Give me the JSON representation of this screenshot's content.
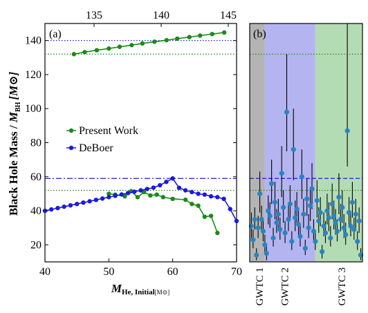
{
  "chart_data": [
    {
      "panel_label": "(a)",
      "type": "line",
      "xlabel_main": "M",
      "xlabel_sub": "He, Initial",
      "xlabel_unit": "[M⊙]",
      "ylabel": "Black Hole Mass / M_BH [M⊙]",
      "ylabel_main": "Black Hole Mass / ",
      "ylabel_M": "M",
      "ylabel_sub": "BH",
      "ylabel_unit": "[M⊙]",
      "xlim": [
        40,
        70
      ],
      "ylim": [
        10,
        150
      ],
      "x_ticks": [
        "40",
        "50",
        "60",
        "70"
      ],
      "y_ticks": [
        "20",
        "40",
        "60",
        "80",
        "100",
        "120",
        "140"
      ],
      "top_axis": {
        "ticks": [
          "135",
          "140",
          "145"
        ],
        "values": [
          135,
          140,
          145
        ]
      },
      "series": [
        {
          "name": "Present Work",
          "color": "#1a8a1a",
          "x": [
            50.0,
            51.0,
            52.5,
            53.5,
            54.5,
            55.5,
            56.5,
            57.5,
            58.5,
            60.0,
            62.0,
            63.0,
            64.0,
            65.0,
            66.0,
            67.0
          ],
          "y": [
            50.0,
            49.5,
            48.5,
            51.5,
            48.0,
            51.0,
            49.0,
            49.5,
            48.0,
            47.0,
            46.5,
            44.0,
            43.0,
            36.5,
            37.0,
            27.0
          ]
        },
        {
          "name": "DeBoer",
          "color": "#1a1ae0",
          "x": [
            40.0,
            41.0,
            42.0,
            43.0,
            44.0,
            45.0,
            46.0,
            47.0,
            48.0,
            49.0,
            50.0,
            51.0,
            52.0,
            53.0,
            54.0,
            55.0,
            56.0,
            57.0,
            58.0,
            59.0,
            60.0,
            61.0,
            62.0,
            63.0,
            64.0,
            65.0,
            66.0,
            67.0,
            68.0,
            69.0,
            70.0
          ],
          "y": [
            40.0,
            40.8,
            41.6,
            42.4,
            43.2,
            44.0,
            44.8,
            45.6,
            46.4,
            47.2,
            48.0,
            48.8,
            49.6,
            50.4,
            51.2,
            52.0,
            52.8,
            53.6,
            55.0,
            57.0,
            59.0,
            53.5,
            52.0,
            51.0,
            50.0,
            49.5,
            48.5,
            48.0,
            47.0,
            41.0,
            34.0
          ]
        },
        {
          "name": "Present Work (top axis)",
          "color": "#1a8a1a",
          "axis": "top",
          "x": [
            133.5,
            134.3,
            135.2,
            136.1,
            136.9,
            137.8,
            138.6,
            139.5,
            140.4,
            141.2,
            142.1,
            142.9,
            143.8,
            144.7
          ],
          "y": [
            132.0,
            133.2,
            134.3,
            135.3,
            136.3,
            137.3,
            138.3,
            139.3,
            140.2,
            141.1,
            142.0,
            142.9,
            143.8,
            144.7
          ]
        }
      ],
      "reference_lines": [
        {
          "y": 140,
          "style": "dotted",
          "color": "#1a1ae0"
        },
        {
          "y": 132,
          "style": "dotted",
          "color": "#1a8a1a"
        },
        {
          "y": 59,
          "style": "dashdot",
          "color": "#1a1ae0"
        },
        {
          "y": 52,
          "style": "dotted",
          "color": "#1a8a1a"
        }
      ],
      "legend": {
        "placement": "center-left",
        "entries": [
          "Present Work",
          "DeBoer"
        ]
      }
    },
    {
      "panel_label": "(b)",
      "type": "scatter",
      "ylim": [
        10,
        150
      ],
      "categories": [
        "GWTC 1",
        "GWTC 2",
        "GWTC 3"
      ],
      "bands": [
        {
          "name": "GWTC 1",
          "from": 0,
          "to": 9,
          "color": "#b4b4b4"
        },
        {
          "name": "GWTC 2",
          "from": 9,
          "to": 39,
          "color": "#b4b4f0"
        },
        {
          "name": "GWTC 3",
          "from": 39,
          "to": 67,
          "color": "#b4dcb4"
        }
      ],
      "x_max": 67,
      "point_color": "#2a84c4",
      "errorbar_color": "#000000",
      "reference_lines": [
        {
          "y": 132,
          "style": "dotted",
          "color": "#1a8a1a"
        },
        {
          "y": 59,
          "style": "dashed",
          "color": "#1a1ae0"
        },
        {
          "y": 52,
          "style": "dotted",
          "color": "#1a8a1a"
        }
      ],
      "points": [
        [
          1,
          31,
          24,
          39
        ],
        [
          2,
          23,
          18,
          29
        ],
        [
          3,
          35,
          29,
          42
        ],
        [
          4,
          14,
          11,
          18
        ],
        [
          5,
          30,
          24,
          37
        ],
        [
          6,
          50,
          39,
          63
        ],
        [
          7,
          35,
          28,
          43
        ],
        [
          8,
          28,
          22,
          35
        ],
        [
          9,
          20,
          15,
          26
        ],
        [
          10,
          15,
          11,
          19
        ],
        [
          11,
          40,
          32,
          49
        ],
        [
          12,
          37,
          30,
          45
        ],
        [
          13,
          56,
          44,
          70
        ],
        [
          14,
          24,
          19,
          30
        ],
        [
          15,
          45,
          35,
          57
        ],
        [
          16,
          33,
          27,
          41
        ],
        [
          17,
          38,
          30,
          47
        ],
        [
          18,
          29,
          23,
          36
        ],
        [
          19,
          62,
          48,
          78
        ],
        [
          20,
          42,
          33,
          52
        ],
        [
          21,
          27,
          21,
          34
        ],
        [
          22,
          98,
          75,
          132
        ],
        [
          23,
          35,
          28,
          44
        ],
        [
          24,
          44,
          35,
          55
        ],
        [
          25,
          22,
          17,
          28
        ],
        [
          26,
          76,
          58,
          100
        ],
        [
          27,
          36,
          28,
          46
        ],
        [
          28,
          41,
          32,
          51
        ],
        [
          29,
          32,
          25,
          40
        ],
        [
          30,
          25,
          19,
          32
        ],
        [
          31,
          60,
          47,
          76
        ],
        [
          32,
          38,
          30,
          47
        ],
        [
          33,
          18,
          14,
          23
        ],
        [
          34,
          47,
          37,
          59
        ],
        [
          35,
          30,
          24,
          38
        ],
        [
          36,
          43,
          34,
          54
        ],
        [
          37,
          53,
          41,
          68
        ],
        [
          38,
          28,
          22,
          35
        ],
        [
          39,
          22,
          17,
          28
        ],
        [
          40,
          46,
          36,
          58
        ],
        [
          41,
          34,
          27,
          42
        ],
        [
          42,
          39,
          31,
          48
        ],
        [
          43,
          16,
          12,
          20
        ],
        [
          44,
          31,
          25,
          39
        ],
        [
          45,
          27,
          21,
          34
        ],
        [
          46,
          40,
          32,
          50
        ],
        [
          47,
          36,
          28,
          45
        ],
        [
          48,
          24,
          19,
          31
        ],
        [
          49,
          44,
          35,
          56
        ],
        [
          50,
          37,
          29,
          46
        ],
        [
          51,
          33,
          26,
          41
        ],
        [
          52,
          28,
          22,
          35
        ],
        [
          53,
          48,
          38,
          62
        ],
        [
          54,
          35,
          28,
          44
        ],
        [
          55,
          42,
          33,
          52
        ],
        [
          56,
          30,
          24,
          38
        ],
        [
          57,
          26,
          20,
          33
        ],
        [
          58,
          87,
          66,
          150
        ],
        [
          59,
          39,
          31,
          48
        ],
        [
          60,
          31,
          25,
          39
        ],
        [
          61,
          45,
          36,
          57
        ],
        [
          62,
          29,
          23,
          36
        ],
        [
          63,
          38,
          30,
          47
        ],
        [
          64,
          22,
          17,
          28
        ],
        [
          65,
          34,
          27,
          42
        ],
        [
          66,
          14,
          11,
          18
        ]
      ]
    }
  ]
}
